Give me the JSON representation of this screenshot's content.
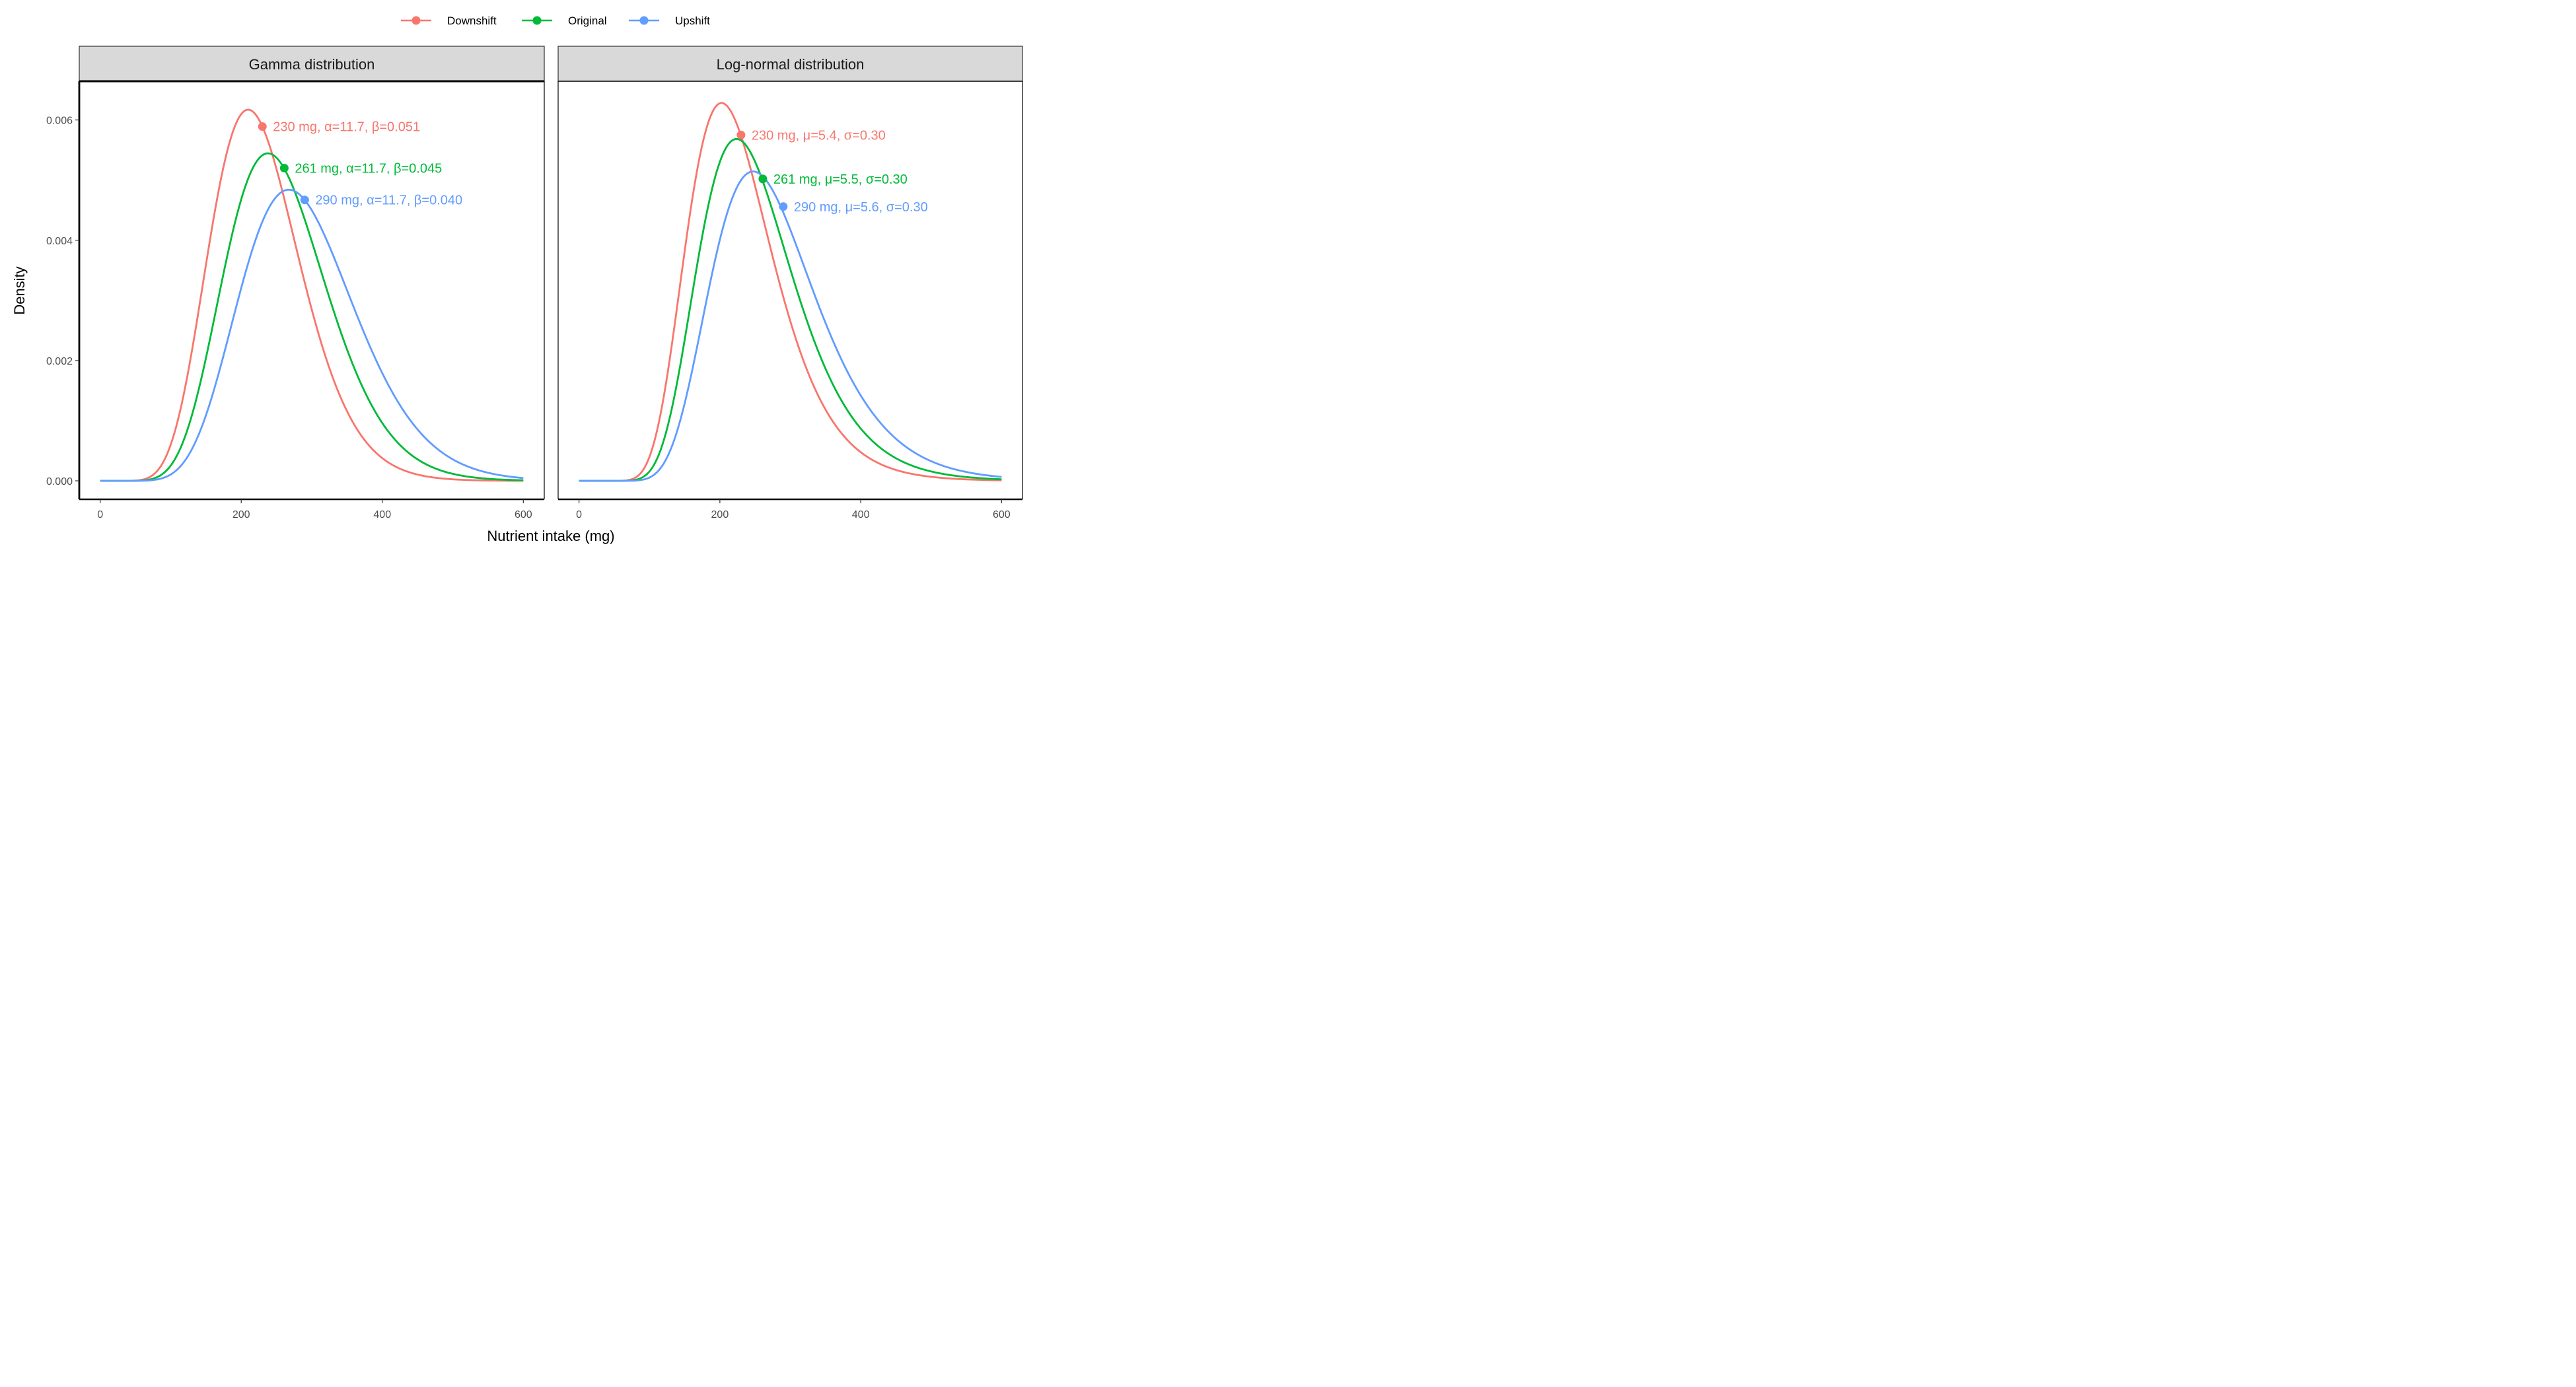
{
  "chart_data": {
    "type": "line",
    "ylabel": "Density",
    "xlabel": "Nutrient intake (mg)",
    "xlim": [
      0,
      600
    ],
    "ylim": [
      0,
      0.0066
    ],
    "x_ticks": [
      0,
      200,
      400,
      600
    ],
    "x_tick_labels": [
      "0",
      "200",
      "400",
      "600"
    ],
    "y_ticks": [
      0,
      0.002,
      0.004,
      0.006
    ],
    "y_tick_labels": [
      "0.000",
      "0.002",
      "0.004",
      "0.006"
    ],
    "grid": false,
    "legend_position": "top-center",
    "legend": [
      {
        "name": "Downshift",
        "color": "#F8766D"
      },
      {
        "name": "Original",
        "color": "#00BA38"
      },
      {
        "name": "Upshift",
        "color": "#619CFF"
      }
    ],
    "panels": [
      {
        "title": "Gamma distribution",
        "distribution": "gamma",
        "series": [
          {
            "name": "Downshift",
            "color": "#F8766D",
            "alpha": 11.7,
            "beta": 0.051,
            "point": {
              "x": 230,
              "y": 0.00589
            },
            "label": "230 mg, α=11.7, β=0.051"
          },
          {
            "name": "Original",
            "color": "#00BA38",
            "alpha": 11.7,
            "beta": 0.045,
            "point": {
              "x": 261,
              "y": 0.0052
            },
            "label": "261 mg, α=11.7, β=0.045"
          },
          {
            "name": "Upshift",
            "color": "#619CFF",
            "alpha": 11.7,
            "beta": 0.04,
            "point": {
              "x": 290,
              "y": 0.00467
            },
            "label": "290 mg, α=11.7, β=0.040"
          }
        ]
      },
      {
        "title": "Log-normal distribution",
        "distribution": "lognormal",
        "series": [
          {
            "name": "Downshift",
            "color": "#F8766D",
            "mu": 5.4,
            "sigma": 0.3,
            "point": {
              "x": 230,
              "y": 0.00575
            },
            "label": "230 mg, μ=5.4, σ=0.30"
          },
          {
            "name": "Original",
            "color": "#00BA38",
            "mu": 5.5,
            "sigma": 0.3,
            "point": {
              "x": 261,
              "y": 0.00502
            },
            "label": "261 mg, μ=5.5, σ=0.30"
          },
          {
            "name": "Upshift",
            "color": "#619CFF",
            "mu": 5.6,
            "sigma": 0.3,
            "point": {
              "x": 290,
              "y": 0.00456
            },
            "label": "290 mg, μ=5.6, σ=0.30"
          }
        ]
      }
    ]
  }
}
